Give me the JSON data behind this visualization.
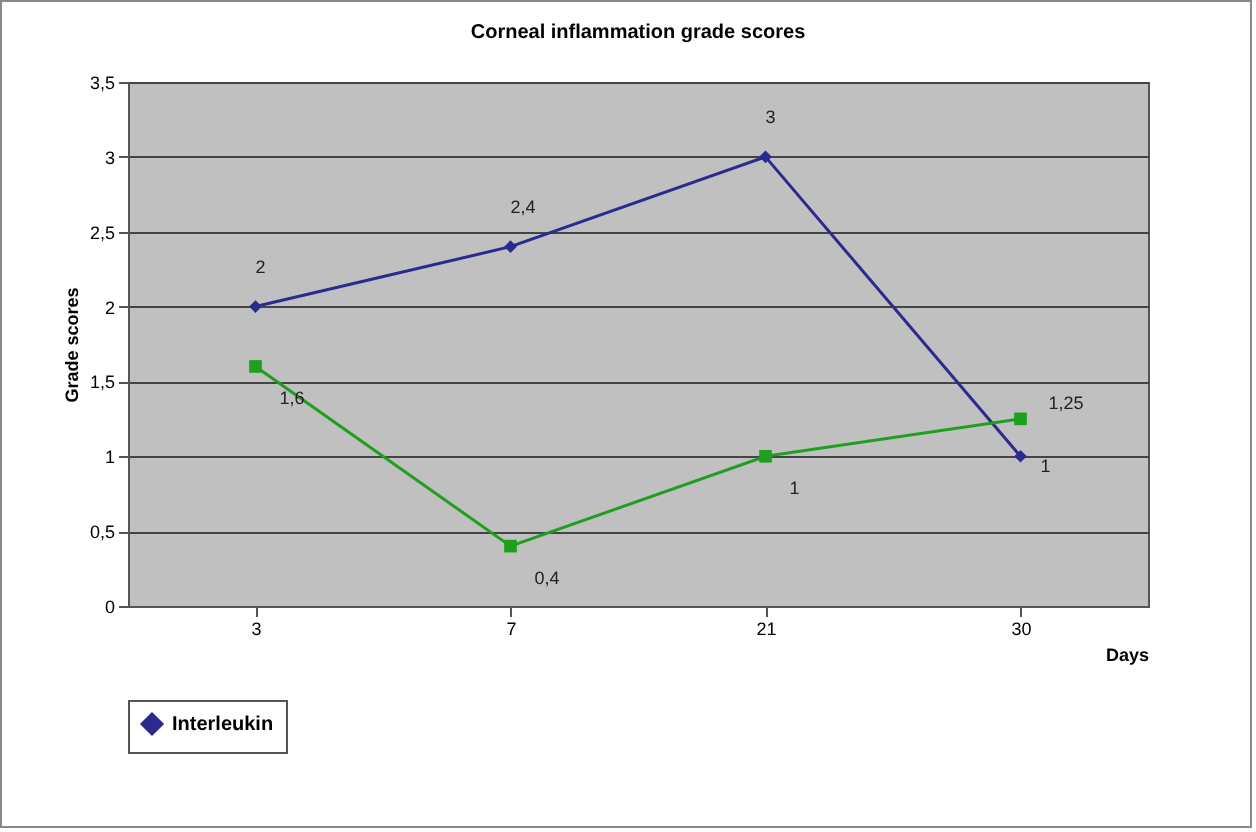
{
  "chart_data": {
    "type": "line",
    "title": "Corneal inflammation grade scores",
    "xlabel": "Days",
    "ylabel": "Grade scores",
    "categories": [
      "3",
      "7",
      "21",
      "30"
    ],
    "series": [
      {
        "name": "Interleukin",
        "color": "#2b2b8f",
        "marker": "diamond",
        "values": [
          2,
          2.4,
          3,
          1
        ],
        "value_labels": [
          "2",
          "2,4",
          "3",
          "1"
        ]
      },
      {
        "color": "#1f9e1f",
        "marker": "square",
        "values": [
          1.6,
          0.4,
          1,
          1.25
        ],
        "value_labels": [
          "1,6",
          "0,4",
          "1",
          "1,25"
        ]
      }
    ],
    "ylim": [
      0,
      3.5
    ],
    "yticks": [
      0,
      {
        "value": 0.5,
        "label": "0,5"
      },
      1,
      {
        "value": 1.5,
        "label": "1,5"
      },
      2,
      {
        "value": 2.5,
        "label": "2,5"
      },
      3,
      {
        "value": 3.5,
        "label": "3,5"
      }
    ],
    "grid": "y",
    "legend": "bottom"
  }
}
